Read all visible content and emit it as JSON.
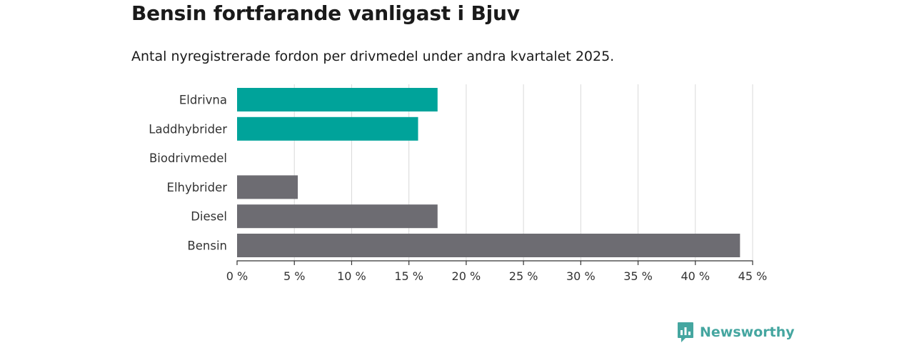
{
  "header": {
    "title": "Bensin fortfarande vanligast i Bjuv",
    "subtitle": "Antal nyregistrerade fordon per drivmedel under andra kvartalet 2025."
  },
  "brand": {
    "name": "Newsworthy",
    "icon": "newsworthy-logo-icon"
  },
  "chart_data": {
    "type": "bar",
    "orientation": "horizontal",
    "categories": [
      "Eldrivna",
      "Laddhybrider",
      "Biodrivmedel",
      "Elhybrider",
      "Diesel",
      "Bensin"
    ],
    "values": [
      17.5,
      15.8,
      0,
      5.3,
      17.5,
      43.9
    ],
    "colors": [
      "#00a39a",
      "#00a39a",
      "#00a39a",
      "#6d6c72",
      "#6d6c72",
      "#6d6c72"
    ],
    "xlim": [
      0,
      45
    ],
    "ticks": [
      {
        "value": 0,
        "label": "0 %"
      },
      {
        "value": 5,
        "label": "5 %"
      },
      {
        "value": 10,
        "label": "10 %"
      },
      {
        "value": 15,
        "label": "15 %"
      },
      {
        "value": 20,
        "label": "20 %"
      },
      {
        "value": 25,
        "label": "25 %"
      },
      {
        "value": 30,
        "label": "30 %"
      },
      {
        "value": 35,
        "label": "35 %"
      },
      {
        "value": 40,
        "label": "40 %"
      },
      {
        "value": 45,
        "label": "45 %"
      }
    ],
    "grid": true,
    "gridline_color": "#d9d9d9",
    "axis_color": "#333333"
  }
}
